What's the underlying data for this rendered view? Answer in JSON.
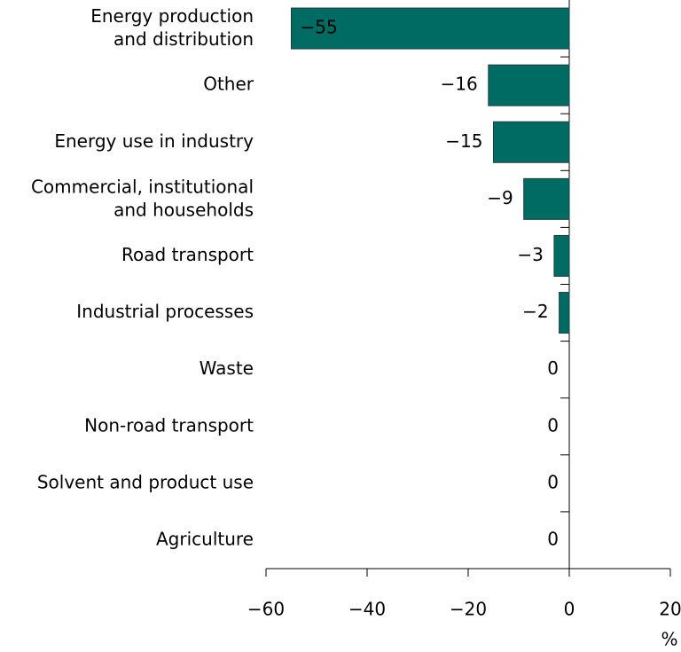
{
  "chart_data": {
    "type": "bar",
    "orientation": "horizontal",
    "categories": [
      "Energy production\nand distribution",
      "Other",
      "Energy use in industry",
      "Commercial, institutional\nand households",
      "Road transport",
      "Industrial processes",
      "Waste",
      "Non-road transport",
      "Solvent and product use",
      "Agriculture"
    ],
    "values": [
      -55,
      -16,
      -15,
      -9,
      -3,
      -2,
      0,
      0,
      0,
      0
    ],
    "value_labels": [
      "−55",
      "−16",
      "−15",
      "−9",
      "−3",
      "−2",
      "0",
      "0",
      "0",
      "0"
    ],
    "color": "#006b63",
    "xlim": [
      -60,
      20
    ],
    "xticks": [
      {
        "value": -60,
        "label": "−60"
      },
      {
        "value": -40,
        "label": "−40"
      },
      {
        "value": -20,
        "label": "−20"
      },
      0,
      20
    ],
    "x_label": "%"
  }
}
